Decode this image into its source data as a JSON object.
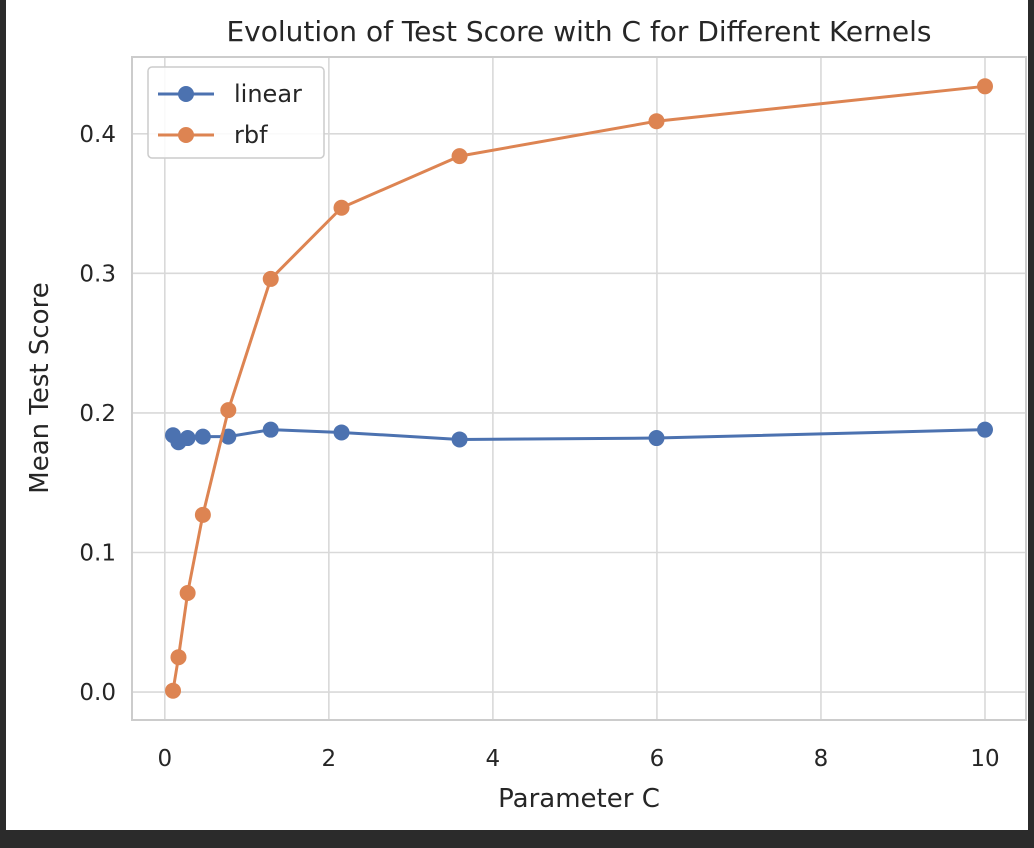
{
  "chart_data": {
    "type": "line",
    "title": "Evolution of Test Score with C for Different Kernels",
    "xlabel": "Parameter C",
    "ylabel": "Mean Test Score",
    "xlim": [
      -0.4,
      10.5
    ],
    "ylim": [
      -0.02,
      0.455
    ],
    "xticks": [
      0,
      2,
      4,
      6,
      8,
      10
    ],
    "xtick_labels": [
      "0",
      "2",
      "4",
      "6",
      "8",
      "10"
    ],
    "yticks": [
      0.0,
      0.1,
      0.2,
      0.3,
      0.4
    ],
    "ytick_labels": [
      "0.0",
      "0.1",
      "0.2",
      "0.3",
      "0.4"
    ],
    "grid": true,
    "legend_position": "top-left",
    "x": [
      0.1,
      0.1668,
      0.2783,
      0.4642,
      0.7743,
      1.2915,
      2.1544,
      3.5938,
      5.9948,
      10.0
    ],
    "series": [
      {
        "name": "linear",
        "color": "#4c72b0",
        "marker": "circle",
        "values": [
          0.184,
          0.179,
          0.182,
          0.183,
          0.183,
          0.188,
          0.186,
          0.181,
          0.182,
          0.188
        ]
      },
      {
        "name": "rbf",
        "color": "#dd8452",
        "marker": "circle",
        "values": [
          0.001,
          0.025,
          0.071,
          0.127,
          0.202,
          0.296,
          0.347,
          0.384,
          0.409,
          0.434
        ]
      }
    ]
  }
}
